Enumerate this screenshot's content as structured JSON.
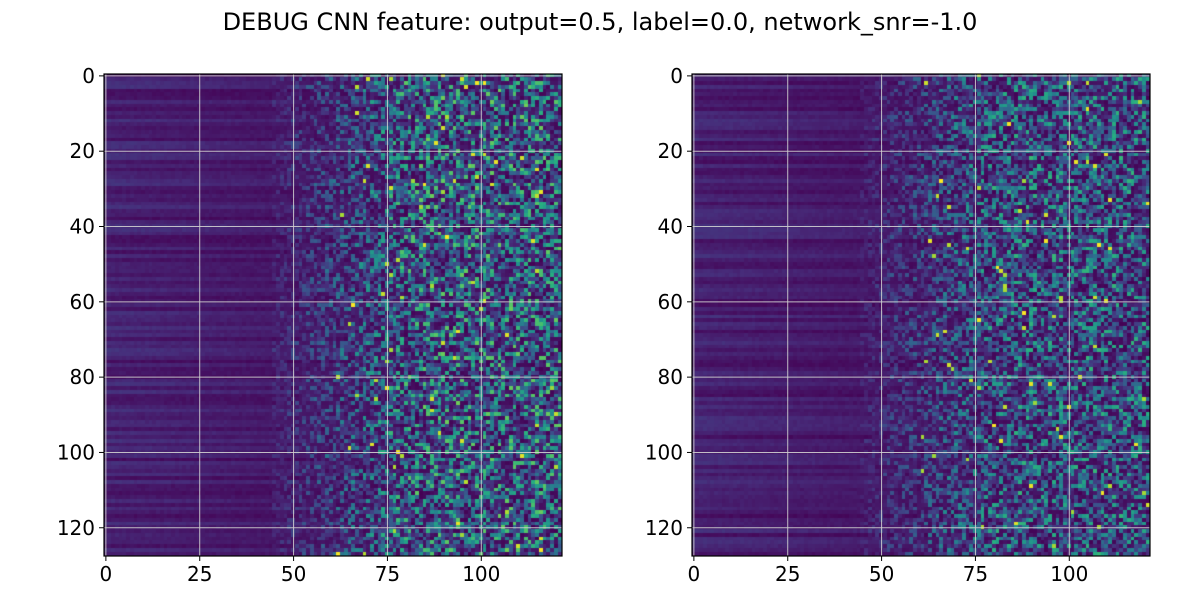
{
  "title": "DEBUG CNN feature: output=0.5, label=0.0, network_snr=-1.0",
  "chart_data": [
    {
      "type": "heatmap",
      "colormap": "viridis",
      "rows": 128,
      "cols": 122,
      "xlim": [
        -0.5,
        121.5
      ],
      "ylim": [
        127.5,
        -0.5
      ],
      "x_ticks": [
        0,
        25,
        50,
        75,
        100
      ],
      "y_ticks": [
        0,
        20,
        40,
        60,
        80,
        100,
        120
      ],
      "x_tick_labels": [
        "0",
        "25",
        "50",
        "75",
        "100"
      ],
      "y_tick_labels": [
        "0",
        "20",
        "40",
        "60",
        "80",
        "100",
        "120"
      ],
      "grid": true,
      "value_range": [
        0,
        1
      ],
      "pattern": "low uniform values for columns 0-50 with faint horizontal row banding; increasing sparse noisy bright pixels for columns 60-121",
      "noise_onset_col": 62
    },
    {
      "type": "heatmap",
      "colormap": "viridis",
      "rows": 128,
      "cols": 122,
      "xlim": [
        -0.5,
        121.5
      ],
      "ylim": [
        127.5,
        -0.5
      ],
      "x_ticks": [
        0,
        25,
        50,
        75,
        100
      ],
      "y_ticks": [
        0,
        20,
        40,
        60,
        80,
        100,
        120
      ],
      "x_tick_labels": [
        "0",
        "25",
        "50",
        "75",
        "100"
      ],
      "y_tick_labels": [
        "0",
        "20",
        "40",
        "60",
        "80",
        "100",
        "120"
      ],
      "grid": true,
      "value_range": [
        0,
        1
      ],
      "pattern": "low uniform values for columns 0-50 with faint horizontal row banding; sparse noisy brighter pixels for columns 60-121, slightly dimmer overall than the first panel",
      "noise_onset_col": 60
    }
  ]
}
